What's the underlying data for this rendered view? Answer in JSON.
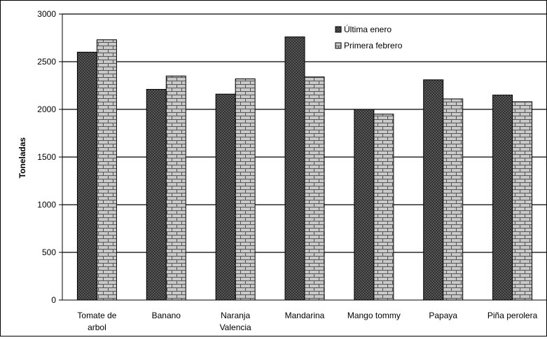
{
  "chart_data": {
    "type": "bar",
    "title": "",
    "xlabel": "",
    "ylabel": "Toneladas",
    "ylim": [
      0,
      3000
    ],
    "yticks": [
      0,
      500,
      1000,
      1500,
      2000,
      2500,
      3000
    ],
    "grid": true,
    "legend_position": "top-right",
    "categories": [
      [
        "Tomate de",
        "arbol"
      ],
      [
        "Banano"
      ],
      [
        "Naranja",
        "Valencia"
      ],
      [
        "Mandarina"
      ],
      [
        "Mango tommy"
      ],
      [
        "Papaya"
      ],
      [
        "Piña perolera"
      ]
    ],
    "series": [
      {
        "name": "Última enero",
        "color": "#3a3a3a",
        "pattern": "dark-checker",
        "values": [
          2600,
          2210,
          2160,
          2760,
          2000,
          2310,
          2150
        ]
      },
      {
        "name": "Primera febrero",
        "color": "#c8c8c8",
        "pattern": "light-brick",
        "values": [
          2730,
          2350,
          2320,
          2340,
          1950,
          2110,
          2080
        ]
      }
    ]
  }
}
